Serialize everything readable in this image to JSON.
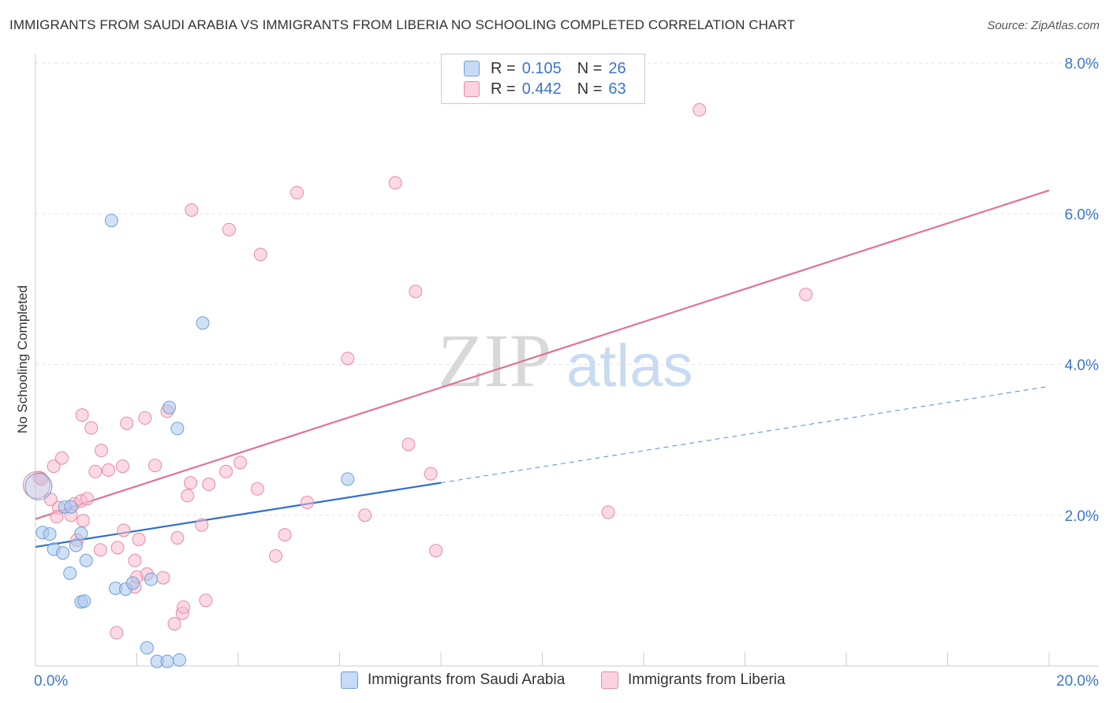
{
  "title": "IMMIGRANTS FROM SAUDI ARABIA VS IMMIGRANTS FROM LIBERIA NO SCHOOLING COMPLETED CORRELATION CHART",
  "source": "Source: ZipAtlas.com",
  "watermark": {
    "zip": "ZIP",
    "atlas": "atlas"
  },
  "legend": {
    "r_label": "R =",
    "n_label": "N =",
    "rows": [
      {
        "r": "0.105",
        "n": "26",
        "color": "#a9c8ee",
        "stroke": "#6f9fd8"
      },
      {
        "r": "0.442",
        "n": "63",
        "color": "#f7bccd",
        "stroke": "#e58ba6"
      }
    ]
  },
  "chart_data": {
    "type": "scatter",
    "title": "IMMIGRANTS FROM SAUDI ARABIA VS IMMIGRANTS FROM LIBERIA NO SCHOOLING COMPLETED CORRELATION CHART",
    "xlabel": "",
    "ylabel": "No Schooling Completed",
    "xlim": [
      0,
      20
    ],
    "ylim": [
      0,
      8
    ],
    "x_tick_labels": [
      "0.0%",
      "20.0%"
    ],
    "y_ticks": [
      2,
      4,
      6,
      8
    ],
    "y_tick_labels": [
      "2.0%",
      "4.0%",
      "6.0%",
      "8.0%"
    ],
    "series": [
      {
        "name": "Immigrants from Saudi Arabia",
        "color": "#a9c8ee",
        "stroke": "#6f9fd8",
        "line_color": "#2f6fcc",
        "trend": {
          "x0": 0,
          "y0": 1.58,
          "x1": 8.0,
          "y1": 2.43,
          "dash_to_x": 20,
          "dash_to_y": 3.71
        },
        "points": [
          [
            0.06,
            2.38
          ],
          [
            0.14,
            1.77
          ],
          [
            0.28,
            1.75
          ],
          [
            0.36,
            1.55
          ],
          [
            0.58,
            2.11
          ],
          [
            0.54,
            1.5
          ],
          [
            0.7,
            2.11
          ],
          [
            0.68,
            1.23
          ],
          [
            0.8,
            1.6
          ],
          [
            0.9,
            1.76
          ],
          [
            1.0,
            1.4
          ],
          [
            0.9,
            0.85
          ],
          [
            0.96,
            0.86
          ],
          [
            1.5,
            5.91
          ],
          [
            1.58,
            1.03
          ],
          [
            1.78,
            1.02
          ],
          [
            1.92,
            1.1
          ],
          [
            2.28,
            1.15
          ],
          [
            2.2,
            0.24
          ],
          [
            2.4,
            0.06
          ],
          [
            2.6,
            0.06
          ],
          [
            2.84,
            0.08
          ],
          [
            2.64,
            3.43
          ],
          [
            2.8,
            3.15
          ],
          [
            3.3,
            4.55
          ],
          [
            6.16,
            2.48
          ]
        ]
      },
      {
        "name": "Immigrants from Liberia",
        "color": "#f7bccd",
        "stroke": "#e58ba6",
        "line_color": "#e0719a",
        "trend": {
          "x0": 0,
          "y0": 1.95,
          "x1": 20,
          "y1": 6.31
        },
        "points": [
          [
            0.08,
            2.5
          ],
          [
            0.12,
            2.48
          ],
          [
            0.3,
            2.21
          ],
          [
            0.36,
            2.65
          ],
          [
            0.46,
            2.1
          ],
          [
            0.42,
            1.98
          ],
          [
            0.52,
            2.76
          ],
          [
            0.76,
            2.15
          ],
          [
            0.7,
            2.0
          ],
          [
            0.82,
            1.67
          ],
          [
            0.9,
            2.19
          ],
          [
            0.94,
            1.93
          ],
          [
            1.02,
            2.22
          ],
          [
            1.1,
            3.16
          ],
          [
            0.92,
            3.33
          ],
          [
            1.18,
            2.58
          ],
          [
            1.3,
            2.86
          ],
          [
            1.28,
            1.54
          ],
          [
            1.44,
            2.6
          ],
          [
            1.6,
            0.44
          ],
          [
            1.62,
            1.57
          ],
          [
            1.72,
            2.65
          ],
          [
            1.74,
            1.8
          ],
          [
            1.8,
            3.22
          ],
          [
            1.96,
            1.4
          ],
          [
            1.96,
            1.05
          ],
          [
            2.04,
            1.68
          ],
          [
            2.16,
            3.29
          ],
          [
            2.0,
            1.18
          ],
          [
            2.2,
            1.22
          ],
          [
            2.36,
            2.66
          ],
          [
            2.52,
            1.17
          ],
          [
            2.6,
            3.38
          ],
          [
            2.74,
            0.56
          ],
          [
            2.8,
            1.7
          ],
          [
            2.9,
            0.7
          ],
          [
            2.92,
            0.78
          ],
          [
            3.0,
            2.26
          ],
          [
            3.06,
            2.43
          ],
          [
            3.08,
            6.05
          ],
          [
            3.28,
            1.87
          ],
          [
            3.36,
            0.87
          ],
          [
            3.42,
            2.41
          ],
          [
            3.76,
            2.58
          ],
          [
            3.82,
            5.79
          ],
          [
            4.04,
            2.7
          ],
          [
            4.38,
            2.35
          ],
          [
            4.44,
            5.46
          ],
          [
            4.74,
            1.46
          ],
          [
            4.92,
            1.74
          ],
          [
            5.16,
            6.28
          ],
          [
            5.36,
            2.17
          ],
          [
            6.16,
            4.08
          ],
          [
            6.5,
            2.0
          ],
          [
            7.1,
            6.41
          ],
          [
            7.36,
            2.94
          ],
          [
            7.5,
            4.97
          ],
          [
            7.8,
            2.55
          ],
          [
            7.9,
            1.53
          ],
          [
            11.3,
            2.04
          ],
          [
            13.1,
            7.38
          ],
          [
            15.2,
            4.93
          ],
          [
            0.02,
            2.4
          ]
        ]
      }
    ]
  }
}
